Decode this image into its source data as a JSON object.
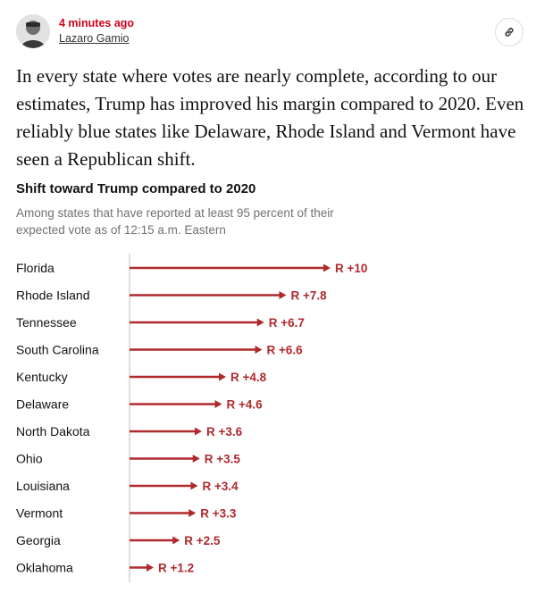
{
  "post": {
    "time": "4 minutes ago",
    "author": "Lazaro Gamio",
    "body": "In every state where votes are nearly complete, according to our estimates, Trump has improved his margin compared to 2020. Even reliably blue states like Delaware, Rhode Island and Vermont have seen a Republican shift."
  },
  "icons": {
    "avatar": "author-photo",
    "link": "link-icon"
  },
  "colors": {
    "bar": "#b0292d",
    "label": "#b0292d",
    "timestamp": "#d0021b"
  },
  "chart_data": {
    "type": "bar",
    "orientation": "horizontal",
    "title": "Shift toward Trump compared to 2020",
    "subtitle": "Among states that have reported at least 95 percent of their expected vote as of 12:15 a.m. Eastern",
    "xlabel": "",
    "ylabel": "",
    "xlim": [
      0,
      10
    ],
    "grid": false,
    "categories": [
      "Florida",
      "Rhode Island",
      "Tennessee",
      "South Carolina",
      "Kentucky",
      "Delaware",
      "North Dakota",
      "Ohio",
      "Louisiana",
      "Vermont",
      "Georgia",
      "Oklahoma"
    ],
    "values": [
      10,
      7.8,
      6.7,
      6.6,
      4.8,
      4.6,
      3.6,
      3.5,
      3.4,
      3.3,
      2.5,
      1.2
    ],
    "value_labels": [
      "R +10",
      "R +7.8",
      "R +6.7",
      "R +6.6",
      "R +4.8",
      "R +4.6",
      "R +3.6",
      "R +3.5",
      "R +3.4",
      "R +3.3",
      "R +2.5",
      "R +1.2"
    ]
  }
}
